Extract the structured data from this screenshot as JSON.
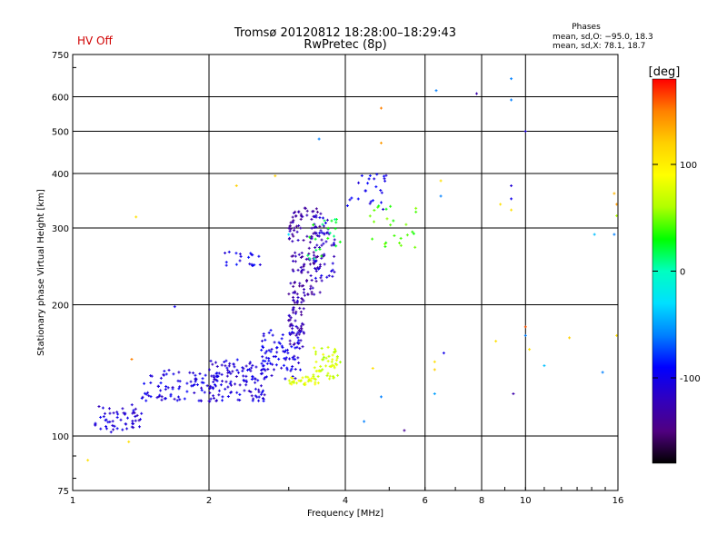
{
  "header": {
    "status": "HV Off",
    "title_line1": "Tromsø 20120812 18:28:00–18:29:43",
    "title_line2": "RwPretec (8p)"
  },
  "phases_box": {
    "title": "Phases",
    "line_o": "mean, sd,O: −95.0, 18.3",
    "line_x": "mean, sd,X:  78.1, 18.7"
  },
  "chart_data": {
    "type": "scatter",
    "xlabel": "Frequency [MHz]",
    "ylabel": "Stationary phase Virtual Height [km]",
    "x_scale": "log",
    "y_scale": "log",
    "xlim": [
      1,
      16
    ],
    "ylim": [
      75,
      750
    ],
    "x_ticks": [
      1,
      2,
      4,
      6,
      8,
      10,
      16
    ],
    "y_ticks": [
      75,
      100,
      200,
      300,
      400,
      500,
      600,
      750
    ],
    "grid": true,
    "colorbar": {
      "label": "[deg]",
      "range": [
        -180,
        180
      ],
      "ticks": [
        100,
        0,
        -100
      ],
      "colors": [
        "#ff0000",
        "#ff8000",
        "#ffd000",
        "#ffff00",
        "#b0ff00",
        "#00ff00",
        "#00ffc0",
        "#00e0ff",
        "#0080ff",
        "#0000ff",
        "#3000c0",
        "#500080",
        "#000000"
      ]
    },
    "clusters": [
      {
        "name": "o-low",
        "x": [
          1.12,
          1.42
        ],
        "y": [
          102,
          118
        ],
        "phase": -110,
        "n": 55
      },
      {
        "name": "o-e",
        "x": [
          1.42,
          2.1
        ],
        "y": [
          120,
          142
        ],
        "phase": -105,
        "n": 90
      },
      {
        "name": "o-f1",
        "x": [
          2.0,
          2.7
        ],
        "y": [
          120,
          150
        ],
        "phase": -108,
        "n": 120
      },
      {
        "name": "o-mid",
        "x": [
          2.6,
          3.2
        ],
        "y": [
          135,
          175
        ],
        "phase": -102,
        "n": 80
      },
      {
        "name": "o-cusp",
        "x": [
          3.0,
          3.25
        ],
        "y": [
          160,
          210
        ],
        "phase": -125,
        "n": 60
      },
      {
        "name": "o-f2",
        "x": [
          3.0,
          3.55
        ],
        "y": [
          210,
          335
        ],
        "phase": -130,
        "n": 140
      },
      {
        "name": "o-f2b",
        "x": [
          3.4,
          3.8
        ],
        "y": [
          230,
          320
        ],
        "phase": -112,
        "n": 50
      },
      {
        "name": "o-upper",
        "x": [
          4.0,
          5.0
        ],
        "y": [
          330,
          400
        ],
        "phase": -100,
        "n": 25
      },
      {
        "name": "x-low",
        "x": [
          3.0,
          3.5
        ],
        "y": [
          131,
          137
        ],
        "phase": 80,
        "n": 30
      },
      {
        "name": "x-rise",
        "x": [
          3.4,
          3.9
        ],
        "y": [
          135,
          160
        ],
        "phase": 72,
        "n": 50
      },
      {
        "name": "x-f2",
        "x": [
          3.3,
          4.0
        ],
        "y": [
          255,
          315
        ],
        "phase": 20,
        "n": 22
      },
      {
        "name": "x-upper",
        "x": [
          4.5,
          5.8
        ],
        "y": [
          270,
          340
        ],
        "phase": 40,
        "n": 25
      },
      {
        "name": "oblique",
        "x": [
          2.15,
          2.6
        ],
        "y": [
          245,
          265
        ],
        "phase": -100,
        "n": 20
      }
    ],
    "points": [
      {
        "x": 1.68,
        "y": 198,
        "phase": -100
      },
      {
        "x": 1.35,
        "y": 150,
        "phase": 150
      },
      {
        "x": 1.08,
        "y": 88,
        "phase": 110
      },
      {
        "x": 1.33,
        "y": 97,
        "phase": 110
      },
      {
        "x": 1.38,
        "y": 318,
        "phase": 110
      },
      {
        "x": 2.3,
        "y": 375,
        "phase": 120
      },
      {
        "x": 2.8,
        "y": 395,
        "phase": 120
      },
      {
        "x": 3.0,
        "y": 290,
        "phase": -30
      },
      {
        "x": 3.5,
        "y": 480,
        "phase": -60
      },
      {
        "x": 4.4,
        "y": 108,
        "phase": -60
      },
      {
        "x": 4.6,
        "y": 143,
        "phase": 110
      },
      {
        "x": 4.8,
        "y": 123,
        "phase": -60
      },
      {
        "x": 4.8,
        "y": 470,
        "phase": 140
      },
      {
        "x": 4.8,
        "y": 565,
        "phase": 150
      },
      {
        "x": 5.4,
        "y": 103,
        "phase": -140
      },
      {
        "x": 6.35,
        "y": 620,
        "phase": -60
      },
      {
        "x": 6.3,
        "y": 148,
        "phase": 110
      },
      {
        "x": 6.3,
        "y": 142,
        "phase": 120
      },
      {
        "x": 6.3,
        "y": 125,
        "phase": -50
      },
      {
        "x": 6.6,
        "y": 155,
        "phase": -100
      },
      {
        "x": 6.5,
        "y": 385,
        "phase": 110
      },
      {
        "x": 6.5,
        "y": 355,
        "phase": -60
      },
      {
        "x": 7.8,
        "y": 610,
        "phase": -130
      },
      {
        "x": 8.6,
        "y": 165,
        "phase": 110
      },
      {
        "x": 8.8,
        "y": 340,
        "phase": 110
      },
      {
        "x": 9.3,
        "y": 660,
        "phase": -60
      },
      {
        "x": 9.3,
        "y": 590,
        "phase": -60
      },
      {
        "x": 9.3,
        "y": 375,
        "phase": -110
      },
      {
        "x": 9.3,
        "y": 350,
        "phase": -100
      },
      {
        "x": 9.3,
        "y": 330,
        "phase": 110
      },
      {
        "x": 9.4,
        "y": 125,
        "phase": -130
      },
      {
        "x": 10.0,
        "y": 500,
        "phase": -110
      },
      {
        "x": 10.0,
        "y": 178,
        "phase": 160
      },
      {
        "x": 10.0,
        "y": 170,
        "phase": -60
      },
      {
        "x": 10.2,
        "y": 158,
        "phase": 110
      },
      {
        "x": 11.0,
        "y": 145,
        "phase": -40
      },
      {
        "x": 12.5,
        "y": 168,
        "phase": 120
      },
      {
        "x": 14.2,
        "y": 290,
        "phase": -40
      },
      {
        "x": 14.8,
        "y": 140,
        "phase": -60
      },
      {
        "x": 15.7,
        "y": 290,
        "phase": -60
      },
      {
        "x": 15.7,
        "y": 360,
        "phase": 130
      },
      {
        "x": 15.9,
        "y": 340,
        "phase": 140
      },
      {
        "x": 15.9,
        "y": 320,
        "phase": 60
      },
      {
        "x": 15.9,
        "y": 170,
        "phase": 110
      }
    ]
  }
}
